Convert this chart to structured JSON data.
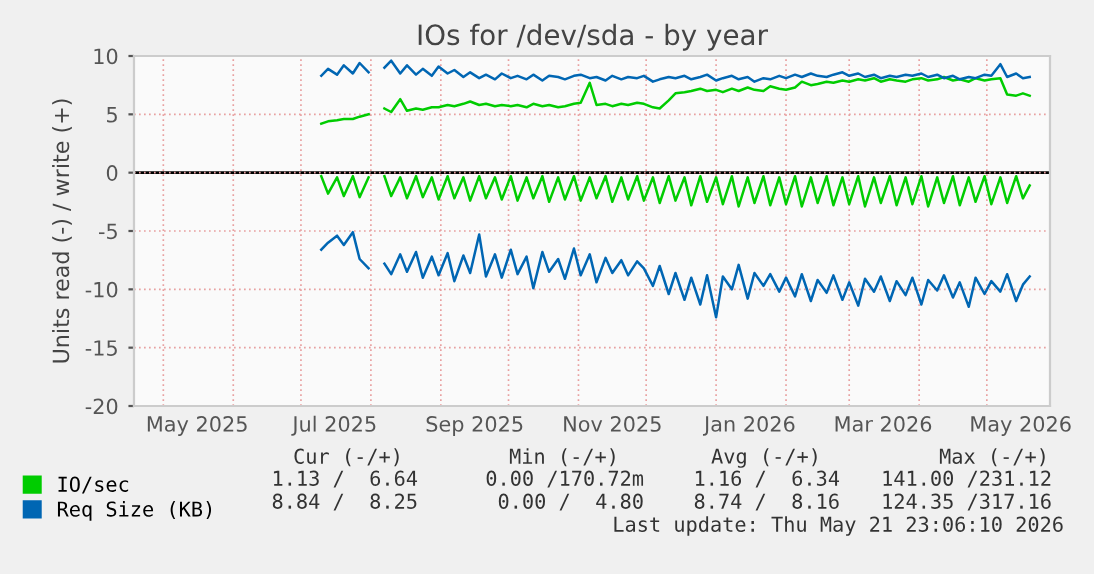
{
  "chart_data": {
    "type": "line",
    "title": "IOs for /dev/sda - by year",
    "ylabel": "Units read (-) / write (+)",
    "x": [
      "2025-07-10",
      "2025-07-13",
      "2025-07-17",
      "2025-07-20",
      "2025-07-24",
      "2025-07-27",
      "2025-07-31",
      "2025-08-03",
      "2025-08-07",
      "2025-08-10",
      "2025-08-14",
      "2025-08-17",
      "2025-08-21",
      "2025-08-24",
      "2025-08-28",
      "2025-08-31",
      "2025-09-04",
      "2025-09-07",
      "2025-09-11",
      "2025-09-14",
      "2025-09-18",
      "2025-09-21",
      "2025-09-25",
      "2025-09-28",
      "2025-10-02",
      "2025-10-05",
      "2025-10-09",
      "2025-10-12",
      "2025-10-16",
      "2025-10-19",
      "2025-10-23",
      "2025-10-26",
      "2025-10-30",
      "2025-11-02",
      "2025-11-06",
      "2025-11-09",
      "2025-11-13",
      "2025-11-16",
      "2025-11-20",
      "2025-11-23",
      "2025-11-27",
      "2025-11-30",
      "2025-12-04",
      "2025-12-07",
      "2025-12-11",
      "2025-12-14",
      "2025-12-18",
      "2025-12-21",
      "2025-12-25",
      "2025-12-28",
      "2026-01-01",
      "2026-01-04",
      "2026-01-08",
      "2026-01-11",
      "2026-01-15",
      "2026-01-18",
      "2026-01-22",
      "2026-01-25",
      "2026-01-29",
      "2026-02-01",
      "2026-02-05",
      "2026-02-08",
      "2026-02-12",
      "2026-02-15",
      "2026-02-19",
      "2026-02-22",
      "2026-02-26",
      "2026-03-01",
      "2026-03-05",
      "2026-03-08",
      "2026-03-12",
      "2026-03-15",
      "2026-03-19",
      "2026-03-22",
      "2026-03-26",
      "2026-03-29",
      "2026-04-02",
      "2026-04-05",
      "2026-04-09",
      "2026-04-12",
      "2026-04-16",
      "2026-04-19",
      "2026-04-23",
      "2026-04-26",
      "2026-04-30",
      "2026-05-03",
      "2026-05-07",
      "2026-05-10",
      "2026-05-14",
      "2026-05-17",
      "2026-05-20"
    ],
    "series": [
      {
        "name": "IO/sec",
        "color": "#00cc00",
        "values": [
          4.2,
          4.4,
          4.5,
          4.6,
          4.6,
          4.8,
          5.0,
          null,
          5.5,
          5.2,
          6.3,
          5.3,
          5.5,
          5.4,
          5.6,
          5.6,
          5.8,
          5.7,
          5.9,
          6.1,
          5.8,
          5.9,
          5.7,
          5.8,
          5.7,
          5.8,
          5.6,
          5.9,
          5.7,
          5.8,
          5.6,
          5.7,
          5.9,
          6.0,
          7.7,
          5.8,
          5.9,
          5.7,
          5.9,
          5.8,
          6.0,
          5.9,
          5.6,
          5.5,
          6.2,
          6.8,
          6.9,
          7.0,
          7.2,
          7.0,
          7.1,
          6.9,
          7.2,
          7.0,
          7.3,
          7.1,
          7.0,
          7.4,
          7.2,
          7.1,
          7.3,
          7.8,
          7.5,
          7.6,
          7.8,
          7.7,
          7.9,
          7.8,
          8.0,
          7.9,
          8.1,
          7.8,
          8.0,
          7.9,
          7.8,
          8.0,
          8.1,
          7.9,
          8.0,
          8.2,
          7.9,
          8.0,
          7.8,
          8.1,
          7.9,
          8.0,
          8.1,
          6.7,
          6.6,
          6.8,
          6.6
        ]
      },
      {
        "color": "#00cc00",
        "values": [
          -0.3,
          -1.8,
          -0.4,
          -2.0,
          -0.3,
          -2.1,
          -0.4,
          null,
          -0.3,
          -2.0,
          -0.4,
          -2.2,
          -0.3,
          -2.1,
          -0.4,
          -2.3,
          -0.3,
          -2.2,
          -0.4,
          -2.4,
          -0.3,
          -2.2,
          -0.4,
          -2.3,
          -0.3,
          -2.4,
          -0.4,
          -2.2,
          -0.3,
          -2.5,
          -0.4,
          -2.3,
          -0.3,
          -2.4,
          -0.4,
          -2.2,
          -0.3,
          -2.5,
          -0.4,
          -2.3,
          -0.3,
          -2.4,
          -0.4,
          -2.6,
          -0.3,
          -2.4,
          -0.4,
          -2.8,
          -0.3,
          -2.5,
          -0.4,
          -2.7,
          -0.3,
          -2.9,
          -0.4,
          -2.6,
          -0.3,
          -2.8,
          -0.4,
          -2.7,
          -0.3,
          -2.9,
          -0.4,
          -2.6,
          -0.3,
          -2.8,
          -0.4,
          -2.7,
          -0.3,
          -2.9,
          -0.4,
          -2.6,
          -0.3,
          -2.8,
          -0.4,
          -2.7,
          -0.3,
          -2.9,
          -0.4,
          -2.6,
          -0.3,
          -2.8,
          -0.4,
          -2.5,
          -0.3,
          -2.7,
          -0.4,
          -2.6,
          -0.3,
          -2.2,
          -1.1
        ]
      },
      {
        "name": "Req Size (KB)",
        "color": "#0066b3",
        "values": [
          8.3,
          8.9,
          8.4,
          9.2,
          8.5,
          9.4,
          8.6,
          null,
          9.0,
          9.6,
          8.5,
          9.2,
          8.4,
          8.9,
          8.3,
          9.1,
          8.5,
          8.8,
          8.2,
          8.6,
          8.1,
          8.4,
          8.0,
          8.5,
          8.1,
          8.3,
          8.0,
          8.4,
          7.9,
          8.3,
          8.2,
          8.0,
          8.3,
          8.4,
          8.1,
          8.2,
          7.9,
          8.3,
          8.0,
          8.2,
          8.1,
          8.3,
          7.8,
          8.0,
          8.2,
          8.1,
          8.3,
          8.0,
          8.2,
          8.4,
          7.9,
          8.1,
          8.3,
          8.0,
          8.2,
          7.8,
          8.1,
          8.0,
          8.3,
          8.1,
          8.4,
          8.2,
          8.5,
          8.3,
          8.2,
          8.4,
          8.6,
          8.3,
          8.5,
          8.2,
          8.4,
          8.1,
          8.3,
          8.2,
          8.4,
          8.3,
          8.5,
          8.2,
          8.4,
          8.1,
          8.3,
          8.0,
          8.2,
          8.1,
          8.4,
          8.3,
          9.3,
          8.2,
          8.5,
          8.1,
          8.2
        ]
      },
      {
        "color": "#0066b3",
        "values": [
          -6.6,
          -6.0,
          -5.4,
          -6.2,
          -5.1,
          -7.4,
          -8.2,
          null,
          -7.8,
          -8.7,
          -7.0,
          -8.5,
          -6.8,
          -9.0,
          -7.2,
          -8.8,
          -6.9,
          -9.3,
          -7.1,
          -8.6,
          -5.3,
          -8.9,
          -7.0,
          -9.0,
          -6.6,
          -8.7,
          -7.2,
          -9.9,
          -6.8,
          -8.5,
          -7.4,
          -9.1,
          -6.5,
          -8.8,
          -7.0,
          -9.4,
          -7.3,
          -8.6,
          -7.5,
          -8.8,
          -7.6,
          -8.2,
          -9.7,
          -8.0,
          -10.4,
          -8.6,
          -10.9,
          -9.0,
          -11.3,
          -8.8,
          -12.4,
          -8.9,
          -10.0,
          -7.9,
          -10.8,
          -8.6,
          -9.7,
          -8.7,
          -10.2,
          -9.0,
          -10.6,
          -8.7,
          -11.0,
          -9.2,
          -10.3,
          -8.8,
          -10.9,
          -9.4,
          -11.4,
          -9.1,
          -10.2,
          -8.9,
          -11.0,
          -9.3,
          -10.5,
          -9.0,
          -11.3,
          -9.2,
          -10.1,
          -8.8,
          -10.7,
          -9.4,
          -11.5,
          -9.0,
          -10.4,
          -9.3,
          -10.2,
          -8.7,
          -11.0,
          -9.6,
          -8.9
        ]
      }
    ],
    "xlim": [
      "2025-04-18",
      "2026-05-29"
    ],
    "xticks": [
      {
        "value": "2025-05-01",
        "label": null
      },
      {
        "value": "2025-05-16",
        "label": "May 2025"
      },
      {
        "value": "2025-06-01",
        "label": null
      },
      {
        "value": "2025-07-01",
        "label": null
      },
      {
        "value": "2025-07-16",
        "label": "Jul 2025"
      },
      {
        "value": "2025-08-01",
        "label": null
      },
      {
        "value": "2025-09-01",
        "label": null
      },
      {
        "value": "2025-09-16",
        "label": "Sep 2025"
      },
      {
        "value": "2025-10-01",
        "label": null
      },
      {
        "value": "2025-11-01",
        "label": null
      },
      {
        "value": "2025-11-16",
        "label": "Nov 2025"
      },
      {
        "value": "2025-12-01",
        "label": null
      },
      {
        "value": "2026-01-01",
        "label": null
      },
      {
        "value": "2026-01-16",
        "label": "Jan 2026"
      },
      {
        "value": "2026-02-01",
        "label": null
      },
      {
        "value": "2026-03-01",
        "label": null
      },
      {
        "value": "2026-03-16",
        "label": "Mar 2026"
      },
      {
        "value": "2026-04-01",
        "label": null
      },
      {
        "value": "2026-05-01",
        "label": null
      },
      {
        "value": "2026-05-16",
        "label": "May 2026"
      }
    ],
    "ylim": [
      -20,
      10
    ],
    "yticks": [
      -20,
      -15,
      -10,
      -5,
      0,
      5,
      10
    ],
    "ref_lines": [
      {
        "axis": "y",
        "value": 0,
        "label": null,
        "color": "#000000"
      }
    ],
    "grid": true,
    "legend": "bottom",
    "annotations": [
      "Cur (-/+)",
      "Min (-/+)",
      "Avg (-/+)",
      "Max (-/+)",
      "1.13 /  6.64",
      "0.00 /170.72m",
      "1.16 /  6.34",
      "141.00 /231.12",
      "8.84 /  8.25",
      "0.00 /  4.80",
      "8.74 /  8.16",
      "124.35 /317.16",
      "Last update: Thu May 21 23:06:10 2026"
    ]
  }
}
